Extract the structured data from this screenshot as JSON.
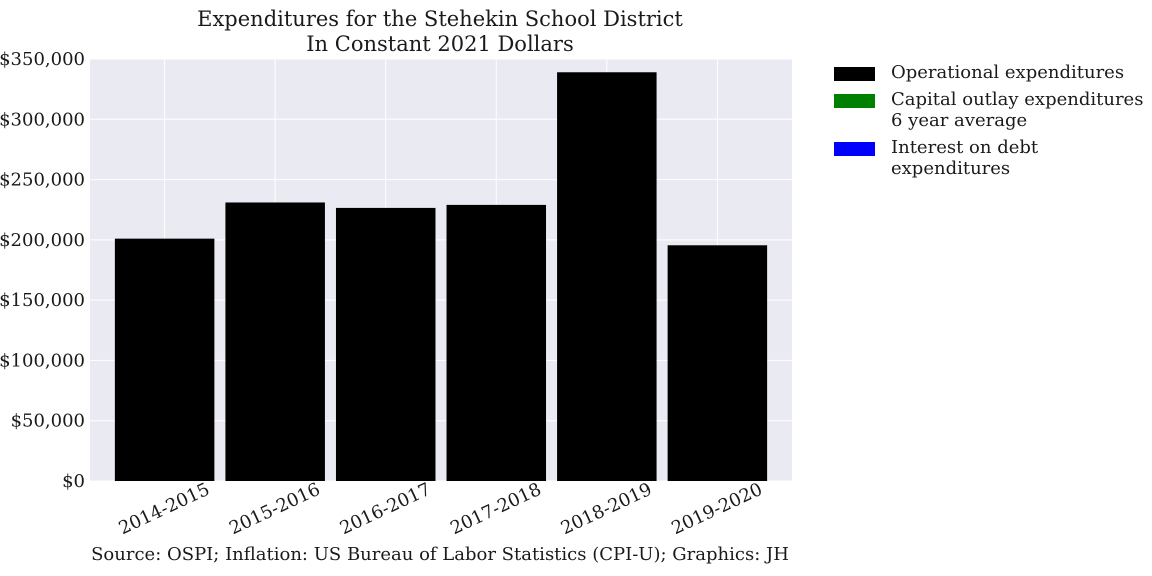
{
  "chart_data": {
    "type": "bar",
    "title_line1": "Expenditures for the Stehekin School District",
    "title_line2": "In Constant 2021 Dollars",
    "categories": [
      "2014-2015",
      "2015-2016",
      "2016-2017",
      "2017-2018",
      "2018-2019",
      "2019-2020"
    ],
    "series": [
      {
        "name": "Operational expenditures",
        "color": "#000000",
        "values": [
          201000,
          231000,
          226500,
          229000,
          339000,
          195500
        ]
      },
      {
        "name": "Capital outlay expenditures\n6 year average",
        "color": "#008000",
        "values": [
          0,
          0,
          0,
          0,
          0,
          0
        ]
      },
      {
        "name": "Interest on debt expenditures",
        "color": "#0000ff",
        "values": [
          0,
          0,
          0,
          0,
          0,
          0
        ]
      }
    ],
    "ylim": [
      0,
      350000
    ],
    "yticks": [
      0,
      50000,
      100000,
      150000,
      200000,
      250000,
      300000,
      350000
    ],
    "ytick_labels": [
      "$0",
      "$50,000",
      "$100,000",
      "$150,000",
      "$200,000",
      "$250,000",
      "$300,000",
      "$350,000"
    ],
    "grid": true,
    "legend_position": "outside-right",
    "plot_background": "#eaeaf2",
    "source_note": "Source: OSPI; Inflation: US Bureau of Labor Statistics (CPI-U); Graphics: JH"
  }
}
